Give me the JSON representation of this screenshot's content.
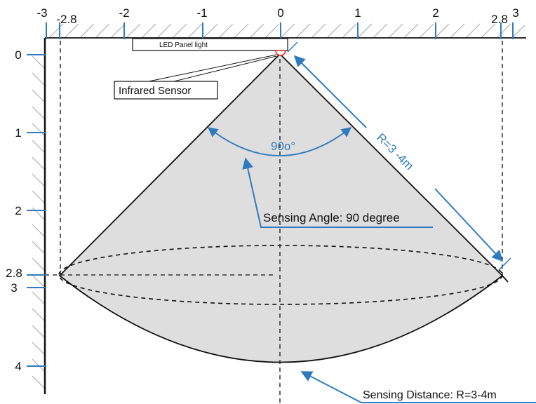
{
  "top_axis": {
    "ticks": [
      "-3",
      "-2.8",
      "-2",
      "-1",
      "0",
      "1",
      "2",
      "2.8",
      "3"
    ]
  },
  "left_axis": {
    "ticks": [
      "0",
      "1",
      "2",
      "2.8",
      "3",
      "4"
    ]
  },
  "labels": {
    "panel": "LED Panel light",
    "sensor": "Infrared Sensor",
    "angle_arc": "90o°",
    "radius": "R=3 -4m",
    "sensing_angle": "Sensing Angle: 90 degree",
    "sensing_distance": "Sensing Distance: R=3-4m"
  },
  "colors": {
    "accent": "#2f7bbf",
    "cone_fill": "#dedede",
    "ink": "#111111",
    "hatch": "#b0b0b0",
    "sensor": "#e02020"
  }
}
